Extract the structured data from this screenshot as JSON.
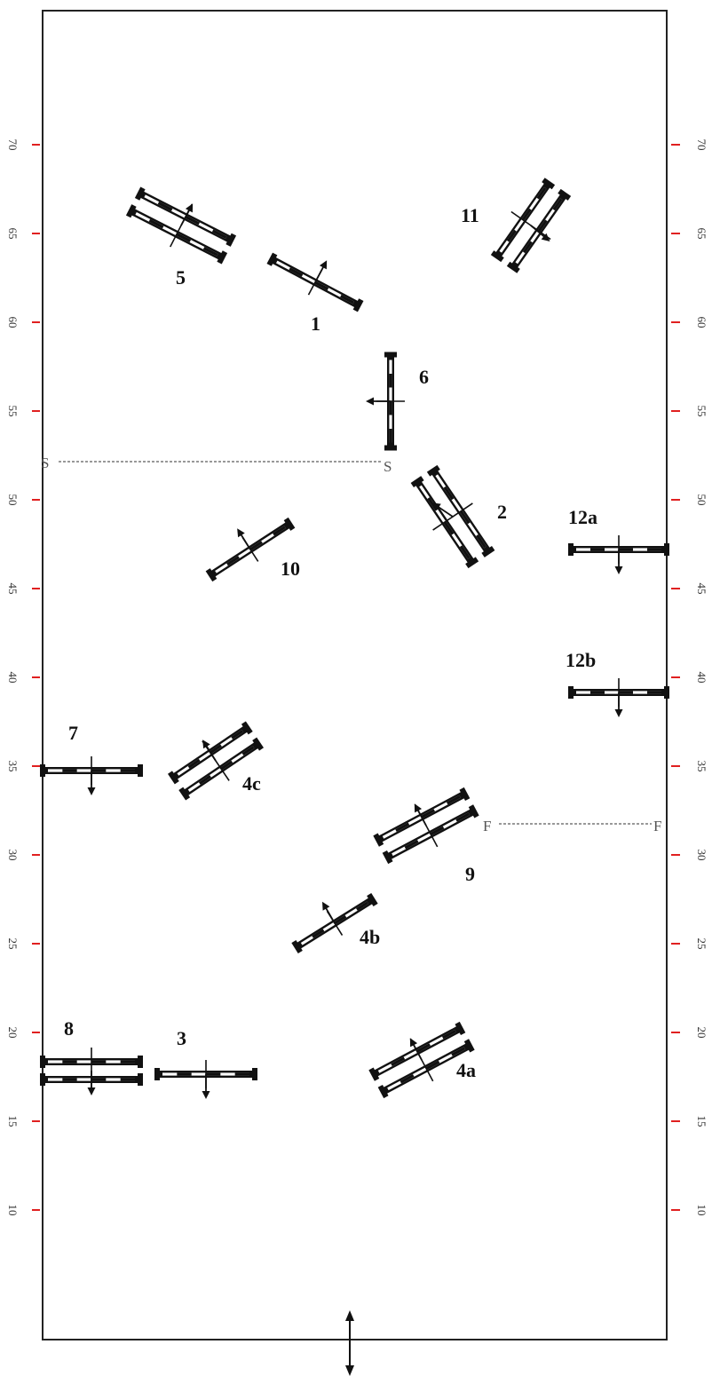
{
  "scale": {
    "ticks": [
      "70",
      "65",
      "60",
      "55",
      "50",
      "45",
      "40",
      "35",
      "30",
      "25",
      "20",
      "15",
      "10"
    ],
    "tick_color": "#e02020"
  },
  "reference_lines": {
    "start": {
      "label": "S"
    },
    "finish": {
      "label": "F"
    }
  },
  "obstacles": [
    {
      "label": "1"
    },
    {
      "label": "2"
    },
    {
      "label": "3"
    },
    {
      "label": "4a"
    },
    {
      "label": "4b"
    },
    {
      "label": "4c"
    },
    {
      "label": "5"
    },
    {
      "label": "6"
    },
    {
      "label": "7"
    },
    {
      "label": "8"
    },
    {
      "label": "9"
    },
    {
      "label": "10"
    },
    {
      "label": "11"
    },
    {
      "label": "12a"
    },
    {
      "label": "12b"
    }
  ],
  "colors": {
    "border": "#222222",
    "pole": "#111111",
    "dashed_line": "#999999",
    "background": "#ffffff"
  }
}
